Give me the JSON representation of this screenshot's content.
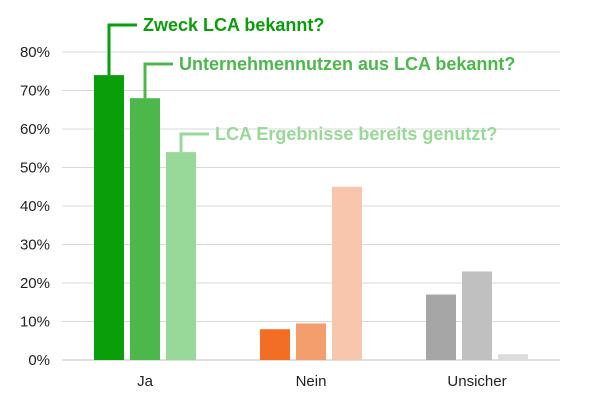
{
  "chart_data": {
    "type": "bar",
    "categories": [
      "Ja",
      "Nein",
      "Unsicher"
    ],
    "series": [
      {
        "name": "Zweck LCA bekannt?",
        "values": [
          74,
          8,
          17
        ]
      },
      {
        "name": "Unternehmennutzen aus LCA bekannt?",
        "values": [
          68,
          9.5,
          23
        ]
      },
      {
        "name": "LCA Ergebnisse bereits genutzt?",
        "values": [
          54,
          45,
          1.5
        ]
      }
    ],
    "colors": [
      [
        "#0a9e0a",
        "#4cb84c",
        "#98d898"
      ],
      [
        "#f26e25",
        "#f39e6c",
        "#f7c6ac"
      ],
      [
        "#a6a6a6",
        "#c0c0c0",
        "#dcdcdc"
      ]
    ],
    "callout_colors": [
      "#0a9e0a",
      "#4cb84c",
      "#98d898"
    ],
    "y_ticks": [
      "0%",
      "10%",
      "20%",
      "30%",
      "40%",
      "50%",
      "60%",
      "70%",
      "80%"
    ],
    "ylim": [
      0,
      80
    ],
    "grid": true,
    "title": "",
    "xlabel": "",
    "ylabel": ""
  }
}
